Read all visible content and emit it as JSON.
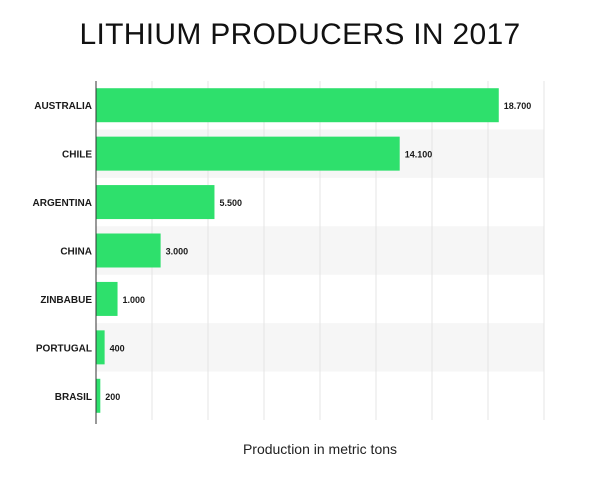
{
  "chart_data": {
    "type": "bar",
    "orientation": "horizontal",
    "title": "LITHIUM PRODUCERS IN 2017",
    "xlabel": "Production in metric tons",
    "ylabel": "",
    "categories": [
      "AUSTRALIA",
      "CHILE",
      "ARGENTINA",
      "CHINA",
      "ZINBABUE",
      "PORTUGAL",
      "BRASIL"
    ],
    "values": [
      18700,
      14100,
      5500,
      3000,
      1000,
      400,
      200
    ],
    "value_labels": [
      "18.700",
      "14.100",
      "5.500",
      "3.000",
      "1.000",
      "400",
      "200"
    ],
    "xlim": [
      0,
      20800
    ],
    "grid": true,
    "bar_color": "#2ee06c",
    "band_color": "#f6f6f6"
  }
}
